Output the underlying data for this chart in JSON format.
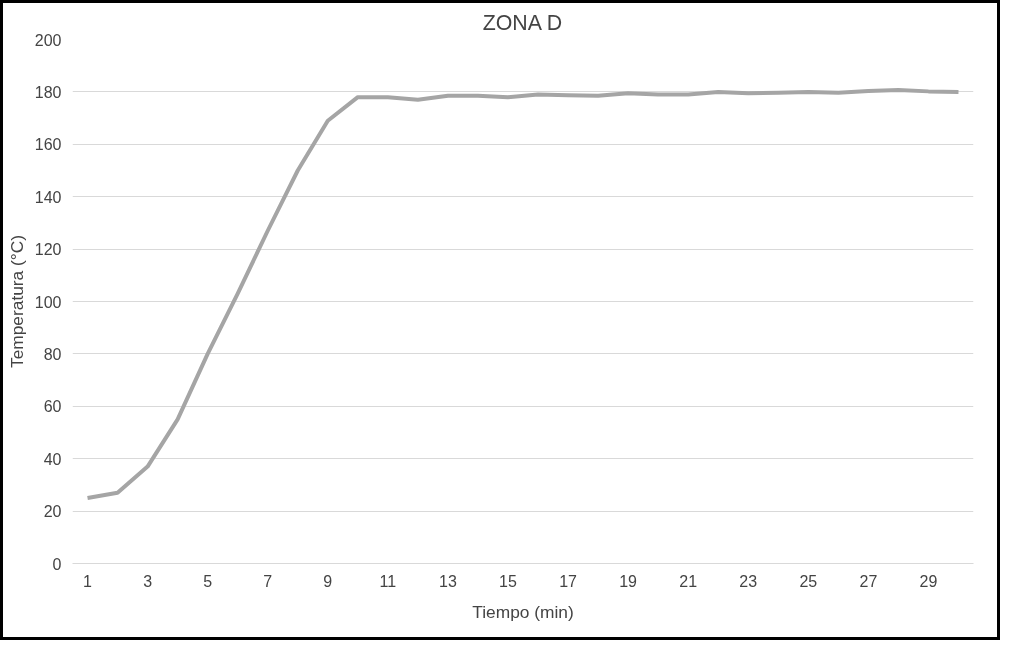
{
  "chart_data": {
    "type": "line",
    "title": "ZONA D",
    "xlabel": "Tiempo (min)",
    "ylabel": "Temperatura (°C)",
    "x": [
      1,
      2,
      3,
      4,
      5,
      6,
      7,
      8,
      9,
      10,
      11,
      12,
      13,
      14,
      15,
      16,
      17,
      18,
      19,
      20,
      21,
      22,
      23,
      24,
      25,
      26,
      27,
      28,
      29,
      30
    ],
    "series": [
      {
        "color": "#a5a5a5",
        "values": [
          25,
          27,
          37,
          55,
          80,
          103,
          127,
          150,
          169,
          178,
          178,
          177,
          178.5,
          178.5,
          178,
          179,
          178.7,
          178.5,
          179.5,
          179,
          179,
          180,
          179.5,
          179.7,
          180,
          179.7,
          180.3,
          180.7,
          180.2,
          180
        ]
      }
    ],
    "xlim": [
      0.5,
      30.5
    ],
    "xticks": [
      1,
      3,
      5,
      7,
      9,
      11,
      13,
      15,
      17,
      19,
      21,
      23,
      25,
      27,
      29
    ],
    "ylim": [
      0,
      200
    ],
    "yticks": [
      0,
      20,
      40,
      60,
      80,
      100,
      120,
      140,
      160,
      180,
      200
    ],
    "grid": "y",
    "marker": "none",
    "line_style": "solid"
  }
}
